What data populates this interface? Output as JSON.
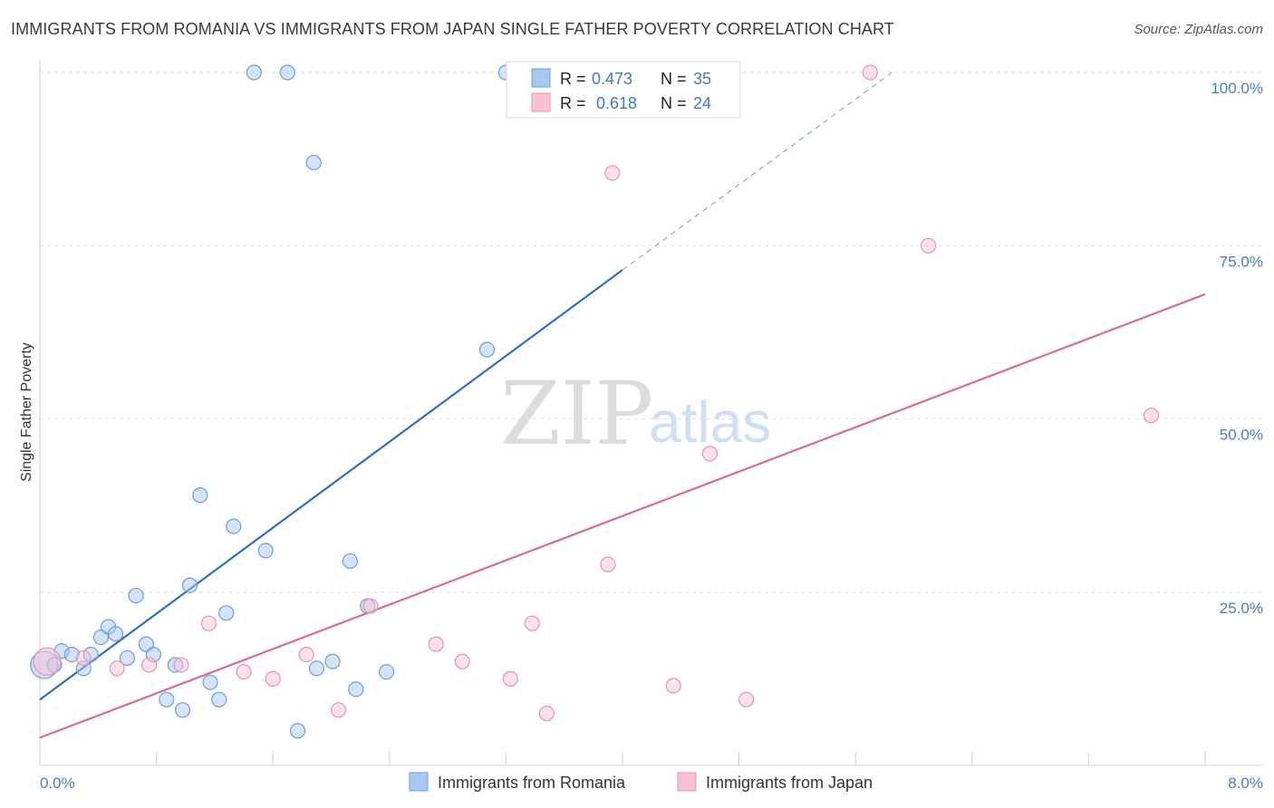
{
  "header": {
    "title": "IMMIGRANTS FROM ROMANIA VS IMMIGRANTS FROM JAPAN SINGLE FATHER POVERTY CORRELATION CHART",
    "source": "Source: ZipAtlas.com"
  },
  "watermark": {
    "zip": "ZIP",
    "atlas": "atlas"
  },
  "chart_data": {
    "type": "scatter",
    "title": "IMMIGRANTS FROM ROMANIA VS IMMIGRANTS FROM JAPAN SINGLE FATHER POVERTY CORRELATION CHART",
    "xlabel": "",
    "ylabel": "Single Father Poverty",
    "xlim": [
      0,
      8
    ],
    "ylim": [
      0,
      102
    ],
    "x_tick_labels": {
      "left": "0.0%",
      "right": "8.0%"
    },
    "y_ticks": [
      {
        "value": 100,
        "label": "100.0%"
      },
      {
        "value": 75,
        "label": "75.0%"
      },
      {
        "value": 50,
        "label": "50.0%"
      },
      {
        "value": 25,
        "label": "25.0%"
      }
    ],
    "series": [
      {
        "name": "Immigrants from Romania",
        "color": "#a9c8ef",
        "stroke": "#6a9fdc",
        "line_color": "#2d6ec9",
        "R": "0.473",
        "N": "35",
        "trend": {
          "x0": 0,
          "y0": 9.5,
          "x1": 4.0,
          "y1": 71.5,
          "dash_to_x": 5.85,
          "dash_to_y": 100
        },
        "points": [
          [
            0.03,
            14.5
          ],
          [
            0.1,
            14.5
          ],
          [
            0.15,
            16.5
          ],
          [
            0.22,
            16
          ],
          [
            0.3,
            14
          ],
          [
            0.35,
            16
          ],
          [
            0.42,
            18.5
          ],
          [
            0.47,
            20
          ],
          [
            0.52,
            19
          ],
          [
            0.6,
            15.5
          ],
          [
            0.66,
            24.5
          ],
          [
            0.73,
            17.5
          ],
          [
            0.78,
            16
          ],
          [
            0.87,
            9.5
          ],
          [
            0.93,
            14.5
          ],
          [
            0.98,
            8
          ],
          [
            1.03,
            26
          ],
          [
            1.1,
            39
          ],
          [
            1.17,
            12
          ],
          [
            1.23,
            9.5
          ],
          [
            1.28,
            22
          ],
          [
            1.33,
            34.5
          ],
          [
            1.47,
            100
          ],
          [
            1.55,
            31
          ],
          [
            1.7,
            100
          ],
          [
            1.77,
            5
          ],
          [
            1.88,
            87
          ],
          [
            1.9,
            14
          ],
          [
            2.01,
            15
          ],
          [
            2.13,
            29.5
          ],
          [
            2.17,
            11
          ],
          [
            2.25,
            23
          ],
          [
            2.38,
            13.5
          ],
          [
            3.07,
            60
          ],
          [
            3.2,
            100
          ]
        ]
      },
      {
        "name": "Immigrants from Japan",
        "color": "#f7c3d3",
        "stroke": "#e893ad",
        "line_color": "#e06793",
        "R": "0.618",
        "N": "24",
        "trend": {
          "x0": 0,
          "y0": 4,
          "x1": 8.0,
          "y1": 68
        },
        "points": [
          [
            0.05,
            15
          ],
          [
            0.3,
            15.5
          ],
          [
            0.53,
            14
          ],
          [
            0.75,
            14.5
          ],
          [
            0.97,
            14.5
          ],
          [
            1.16,
            20.5
          ],
          [
            1.4,
            13.5
          ],
          [
            1.6,
            12.5
          ],
          [
            1.83,
            16
          ],
          [
            2.05,
            8
          ],
          [
            2.27,
            23
          ],
          [
            2.72,
            17.5
          ],
          [
            2.9,
            15
          ],
          [
            3.23,
            12.5
          ],
          [
            3.38,
            20.5
          ],
          [
            3.48,
            7.5
          ],
          [
            3.9,
            29
          ],
          [
            3.93,
            85.5
          ],
          [
            4.35,
            11.5
          ],
          [
            4.6,
            45
          ],
          [
            4.85,
            9.5
          ],
          [
            5.7,
            100
          ],
          [
            6.1,
            75
          ],
          [
            7.63,
            50.5
          ]
        ]
      }
    ],
    "stats_labels": {
      "r": "R =",
      "n": "N ="
    }
  }
}
